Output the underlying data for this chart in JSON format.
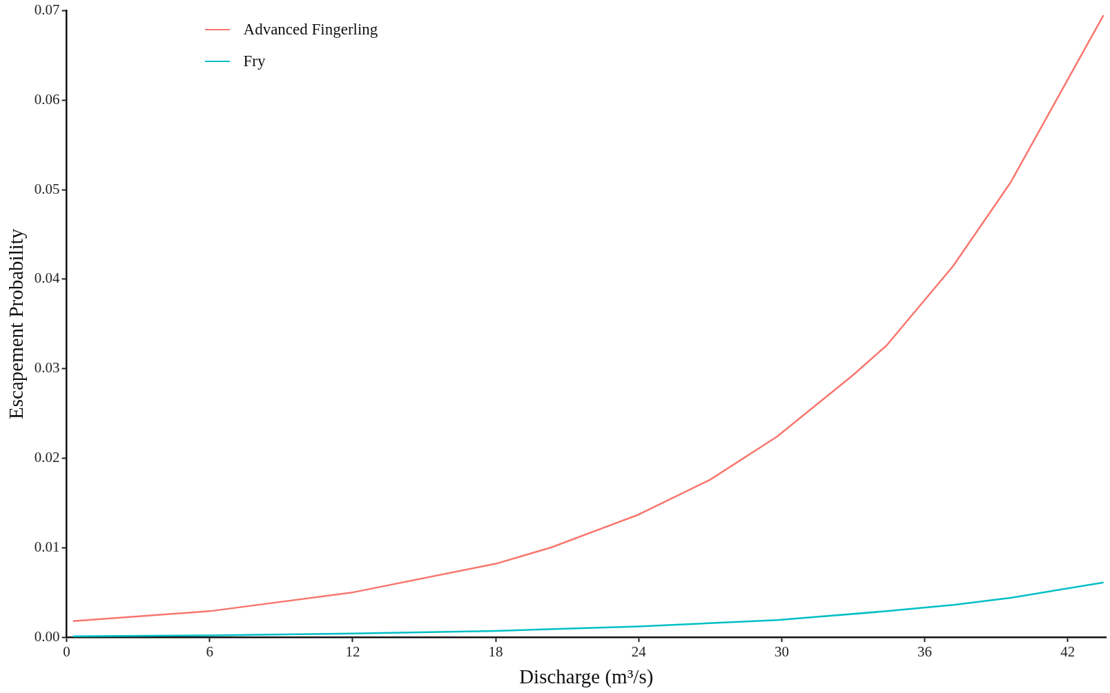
{
  "chart_data": {
    "type": "line",
    "xlabel": "Discharge (m³/s)",
    "ylabel": "Escapement Probability",
    "xlim": [
      0,
      43.6
    ],
    "xticks": [
      0,
      6,
      12,
      18,
      24,
      30,
      36,
      42
    ],
    "ylim": [
      0,
      0.07
    ],
    "yticks": [
      {
        "value": 0,
        "label": "0.00"
      },
      {
        "value": 0.01,
        "label": "0.01"
      },
      {
        "value": 0.02,
        "label": "0.02"
      },
      {
        "value": 0.03,
        "label": "0.03"
      },
      {
        "value": 0.04,
        "label": "0.04"
      },
      {
        "value": 0.05,
        "label": "0.05"
      },
      {
        "value": 0.06,
        "label": "0.06"
      },
      {
        "value": 0.07,
        "label": "0.07"
      }
    ],
    "grid": false,
    "legend": "top left",
    "marker": "none",
    "line_style": "solid",
    "series": [
      {
        "name": "Advanced Fingerling",
        "color": "#f8766d",
        "x": [
          0.27,
          6,
          12,
          18,
          20.3,
          24,
          27,
          29.8,
          33,
          34.4,
          37.2,
          39.6,
          43.5
        ],
        "values": [
          0.0018,
          0.0029,
          0.005,
          0.0082,
          0.01,
          0.0137,
          0.0176,
          0.0224,
          0.0293,
          0.0326,
          0.0415,
          0.0508,
          0.0695
        ]
      },
      {
        "name": "Fry",
        "color": "#00bfc4",
        "x": [
          0.27,
          6,
          12,
          18,
          24,
          29.8,
          34.4,
          37.2,
          39.6,
          43.5
        ],
        "values": [
          0.0001,
          0.0002,
          0.0004,
          0.0007,
          0.0012,
          0.0019,
          0.0029,
          0.0036,
          0.0044,
          0.0061
        ]
      }
    ]
  }
}
